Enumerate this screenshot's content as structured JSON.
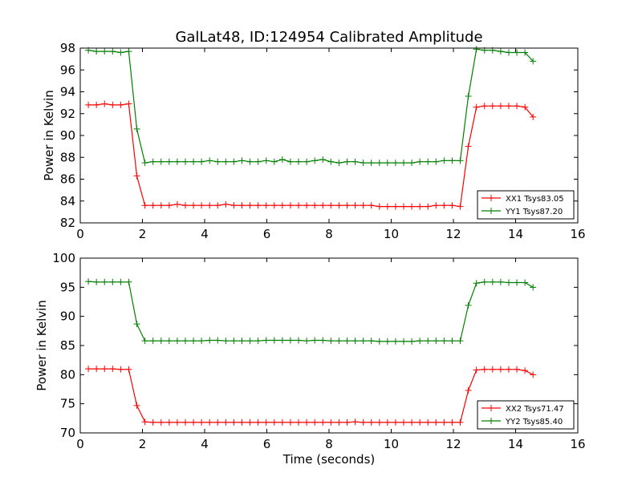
{
  "figure": {
    "title": "GalLat48, ID:124954 Calibrated Amplitude",
    "xlabel": "Time (seconds)"
  },
  "chart_data": [
    {
      "type": "line",
      "title": "GalLat48, ID:124954 Calibrated Amplitude",
      "xlabel": "",
      "ylabel": "Power in Kelvin",
      "xlim": [
        0,
        16
      ],
      "ylim": [
        82,
        98
      ],
      "xticks": [
        0,
        2,
        4,
        6,
        8,
        10,
        12,
        14,
        16
      ],
      "yticks": [
        82,
        84,
        86,
        88,
        90,
        92,
        94,
        96,
        98
      ],
      "grid": false,
      "legend_position": "lower-right",
      "x": [
        0.26,
        0.52,
        0.78,
        1.04,
        1.3,
        1.56,
        1.82,
        2.08,
        2.34,
        2.6,
        2.86,
        3.12,
        3.38,
        3.64,
        3.9,
        4.16,
        4.42,
        4.68,
        4.94,
        5.2,
        5.46,
        5.72,
        5.98,
        6.24,
        6.5,
        6.76,
        7.02,
        7.28,
        7.54,
        7.8,
        8.06,
        8.32,
        8.58,
        8.84,
        9.1,
        9.36,
        9.62,
        9.88,
        10.14,
        10.4,
        10.66,
        10.92,
        11.18,
        11.44,
        11.7,
        11.96,
        12.22,
        12.48,
        12.74,
        13.0,
        13.26,
        13.52,
        13.78,
        14.04,
        14.3,
        14.56
      ],
      "series": [
        {
          "name": "XX1 Tsys83.05",
          "color": "#ff0000",
          "marker": "plus",
          "values": [
            92.8,
            92.8,
            92.9,
            92.8,
            92.8,
            92.9,
            86.3,
            83.6,
            83.6,
            83.6,
            83.6,
            83.7,
            83.6,
            83.6,
            83.6,
            83.6,
            83.6,
            83.7,
            83.6,
            83.6,
            83.6,
            83.6,
            83.6,
            83.6,
            83.6,
            83.6,
            83.6,
            83.6,
            83.6,
            83.6,
            83.6,
            83.6,
            83.6,
            83.6,
            83.6,
            83.6,
            83.5,
            83.5,
            83.5,
            83.5,
            83.5,
            83.5,
            83.5,
            83.6,
            83.6,
            83.6,
            83.5,
            89.0,
            92.6,
            92.7,
            92.7,
            92.7,
            92.7,
            92.7,
            92.6,
            91.7
          ]
        },
        {
          "name": "YY1 Tsys87.20",
          "color": "#008000",
          "marker": "plus",
          "values": [
            97.8,
            97.7,
            97.7,
            97.7,
            97.6,
            97.7,
            90.6,
            87.5,
            87.6,
            87.6,
            87.6,
            87.6,
            87.6,
            87.6,
            87.6,
            87.7,
            87.6,
            87.6,
            87.6,
            87.7,
            87.6,
            87.6,
            87.7,
            87.6,
            87.8,
            87.6,
            87.6,
            87.6,
            87.7,
            87.8,
            87.6,
            87.5,
            87.6,
            87.6,
            87.5,
            87.5,
            87.5,
            87.5,
            87.5,
            87.5,
            87.5,
            87.6,
            87.6,
            87.6,
            87.7,
            87.7,
            87.7,
            93.6,
            97.9,
            97.8,
            97.8,
            97.7,
            97.6,
            97.6,
            97.6,
            96.8
          ]
        }
      ]
    },
    {
      "type": "line",
      "title": "",
      "xlabel": "Time (seconds)",
      "ylabel": "Power in Kelvin",
      "xlim": [
        0,
        16
      ],
      "ylim": [
        70,
        100
      ],
      "xticks": [
        0,
        2,
        4,
        6,
        8,
        10,
        12,
        14,
        16
      ],
      "yticks": [
        70,
        75,
        80,
        85,
        90,
        95,
        100
      ],
      "grid": false,
      "legend_position": "lower-right",
      "x": [
        0.26,
        0.52,
        0.78,
        1.04,
        1.3,
        1.56,
        1.82,
        2.08,
        2.34,
        2.6,
        2.86,
        3.12,
        3.38,
        3.64,
        3.9,
        4.16,
        4.42,
        4.68,
        4.94,
        5.2,
        5.46,
        5.72,
        5.98,
        6.24,
        6.5,
        6.76,
        7.02,
        7.28,
        7.54,
        7.8,
        8.06,
        8.32,
        8.58,
        8.84,
        9.1,
        9.36,
        9.62,
        9.88,
        10.14,
        10.4,
        10.66,
        10.92,
        11.18,
        11.44,
        11.7,
        11.96,
        12.22,
        12.48,
        12.74,
        13.0,
        13.26,
        13.52,
        13.78,
        14.04,
        14.3,
        14.56
      ],
      "series": [
        {
          "name": "XX2 Tsys71.47",
          "color": "#ff0000",
          "marker": "plus",
          "values": [
            81.0,
            81.0,
            81.0,
            81.0,
            80.9,
            80.9,
            74.7,
            71.9,
            71.8,
            71.8,
            71.8,
            71.8,
            71.8,
            71.8,
            71.8,
            71.8,
            71.8,
            71.8,
            71.8,
            71.8,
            71.8,
            71.8,
            71.8,
            71.8,
            71.8,
            71.8,
            71.8,
            71.8,
            71.8,
            71.8,
            71.8,
            71.8,
            71.8,
            71.9,
            71.8,
            71.8,
            71.8,
            71.8,
            71.8,
            71.8,
            71.8,
            71.8,
            71.8,
            71.8,
            71.8,
            71.8,
            71.8,
            77.3,
            80.8,
            80.9,
            80.9,
            80.9,
            80.9,
            80.9,
            80.7,
            80.0
          ]
        },
        {
          "name": "YY2 Tsys85.40",
          "color": "#008000",
          "marker": "plus",
          "values": [
            96.0,
            95.9,
            95.9,
            95.9,
            95.9,
            95.9,
            88.7,
            85.8,
            85.8,
            85.8,
            85.8,
            85.8,
            85.8,
            85.8,
            85.8,
            85.9,
            85.9,
            85.8,
            85.8,
            85.8,
            85.8,
            85.8,
            85.9,
            85.9,
            85.9,
            85.9,
            85.9,
            85.8,
            85.9,
            85.9,
            85.8,
            85.8,
            85.8,
            85.8,
            85.8,
            85.8,
            85.7,
            85.7,
            85.7,
            85.7,
            85.7,
            85.8,
            85.8,
            85.8,
            85.8,
            85.8,
            85.8,
            91.9,
            95.7,
            95.9,
            95.9,
            95.9,
            95.8,
            95.8,
            95.8,
            95.0
          ]
        }
      ]
    }
  ]
}
